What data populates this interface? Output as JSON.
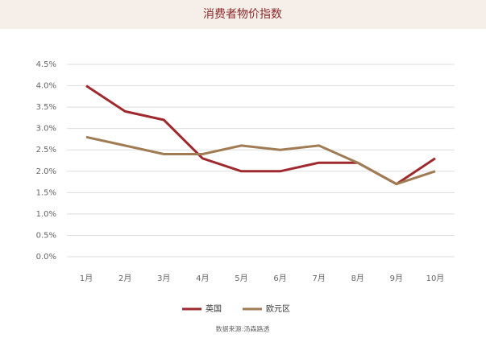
{
  "chart_data": {
    "type": "line",
    "title": "消费者物价指数",
    "categories": [
      "1月",
      "2月",
      "3月",
      "4月",
      "5月",
      "6月",
      "7月",
      "8月",
      "9月",
      "10月"
    ],
    "series": [
      {
        "name": "英国",
        "color": "#9e2a2f",
        "values": [
          4.0,
          3.4,
          3.2,
          2.3,
          2.0,
          2.0,
          2.2,
          2.2,
          1.7,
          2.3
        ]
      },
      {
        "name": "欧元区",
        "color": "#a07c55",
        "values": [
          2.8,
          2.6,
          2.4,
          2.4,
          2.6,
          2.5,
          2.6,
          2.2,
          1.7,
          2.0
        ]
      }
    ],
    "ylim": [
      0,
      4.5
    ],
    "yticks": [
      {
        "value": 0,
        "label": "0.0%"
      },
      {
        "value": 0.5,
        "label": "0.5%"
      },
      {
        "value": 1,
        "label": "1.0%"
      },
      {
        "value": 1.5,
        "label": "1.5%"
      },
      {
        "value": 2,
        "label": "2.0%"
      },
      {
        "value": 2.5,
        "label": "2.5%"
      },
      {
        "value": 3,
        "label": "3.0%"
      },
      {
        "value": 3.5,
        "label": "3.5%"
      },
      {
        "value": 4,
        "label": "4.0%"
      },
      {
        "value": 4.5,
        "label": "4.5%"
      }
    ],
    "grid": true,
    "legend": "bottom",
    "source": "数据来源:汤森路透"
  }
}
